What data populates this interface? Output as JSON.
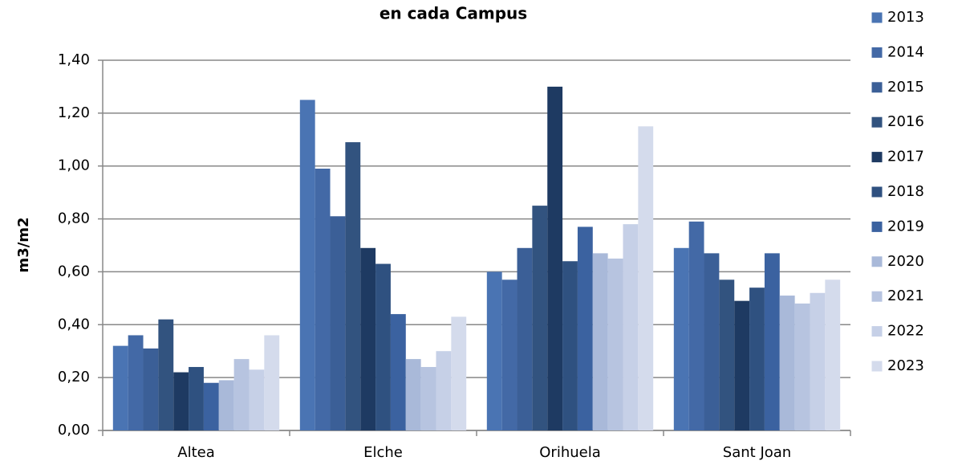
{
  "chart_data": {
    "type": "bar",
    "title": "en cada Campus",
    "y_label": "m3/m2",
    "categories": [
      "Altea",
      "Elche",
      "Orihuela",
      "Sant Joan"
    ],
    "series": [
      {
        "name": "2013",
        "color": "#4a74b3",
        "values": [
          0.32,
          1.25,
          0.6,
          0.69
        ]
      },
      {
        "name": "2014",
        "color": "#4369a6",
        "values": [
          0.36,
          0.99,
          0.57,
          0.79
        ]
      },
      {
        "name": "2015",
        "color": "#3b5f97",
        "values": [
          0.31,
          0.81,
          0.69,
          0.67
        ]
      },
      {
        "name": "2016",
        "color": "#32537f",
        "values": [
          0.42,
          1.09,
          0.85,
          0.57
        ]
      },
      {
        "name": "2017",
        "color": "#1e3a62",
        "values": [
          0.22,
          0.69,
          1.3,
          0.49
        ]
      },
      {
        "name": "2018",
        "color": "#2f5180",
        "values": [
          0.24,
          0.63,
          0.64,
          0.54
        ]
      },
      {
        "name": "2019",
        "color": "#3b62a0",
        "values": [
          0.18,
          0.44,
          0.77,
          0.67
        ]
      },
      {
        "name": "2020",
        "color": "#a9b9d9",
        "values": [
          0.19,
          0.27,
          0.67,
          0.51
        ]
      },
      {
        "name": "2021",
        "color": "#b7c4e0",
        "values": [
          0.27,
          0.24,
          0.65,
          0.48
        ]
      },
      {
        "name": "2022",
        "color": "#c6d0e7",
        "values": [
          0.23,
          0.3,
          0.78,
          0.52
        ]
      },
      {
        "name": "2023",
        "color": "#d4dbec",
        "values": [
          0.36,
          0.43,
          1.15,
          0.57
        ]
      }
    ],
    "ylim": [
      0,
      1.4
    ],
    "yticks": [
      {
        "value": 0,
        "label": "0,00"
      },
      {
        "value": 0.2,
        "label": "0,20"
      },
      {
        "value": 0.4,
        "label": "0,40"
      },
      {
        "value": 0.6,
        "label": "0,60"
      },
      {
        "value": 0.8,
        "label": "0,80"
      },
      {
        "value": 1.0,
        "label": "1,00"
      },
      {
        "value": 1.2,
        "label": "1,20"
      },
      {
        "value": 1.4,
        "label": "1,40"
      }
    ],
    "grid": true,
    "legend": "right"
  }
}
